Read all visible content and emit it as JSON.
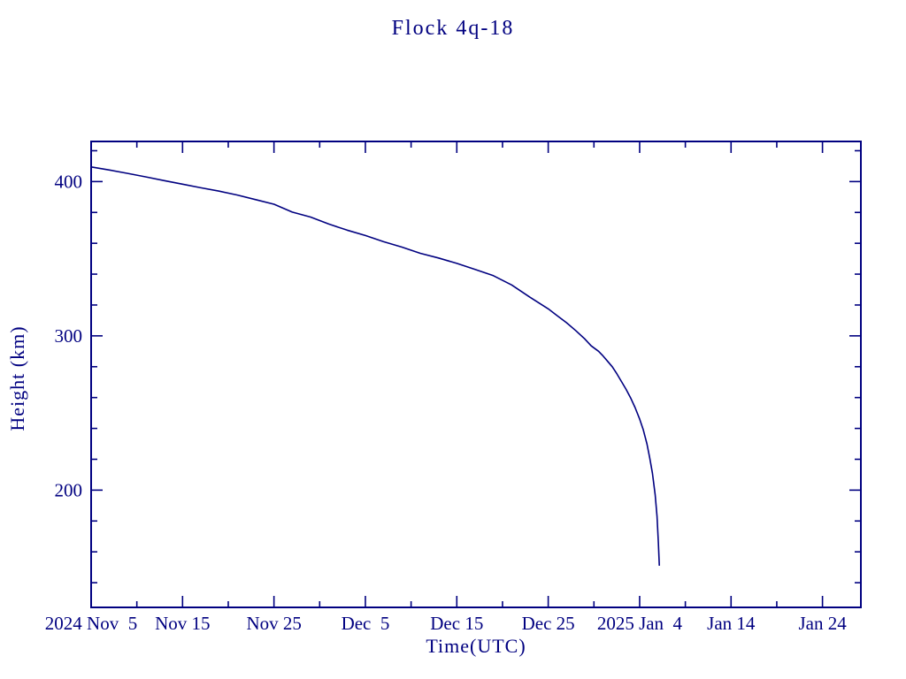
{
  "title": "Flock 4q-18",
  "colors": {
    "line": "#000080",
    "axis": "#000080",
    "text": "#000080",
    "background": "#ffffff"
  },
  "chart_data": {
    "type": "line",
    "title": "Flock 4q-18",
    "xlabel": "Time(UTC)",
    "ylabel": "Height (km)",
    "x_unit": "days since 2024 Nov 5 00:00 UTC",
    "xlim": [
      0,
      84.2
    ],
    "ylim": [
      124,
      426
    ],
    "grid": false,
    "legend_position": "none",
    "x_major_ticks": [
      {
        "day": 0,
        "label": "2024 Nov  5"
      },
      {
        "day": 10,
        "label": "Nov 15"
      },
      {
        "day": 20,
        "label": "Nov 25"
      },
      {
        "day": 30,
        "label": "Dec  5"
      },
      {
        "day": 40,
        "label": "Dec 15"
      },
      {
        "day": 50,
        "label": "Dec 25"
      },
      {
        "day": 60,
        "label": "2025 Jan  4"
      },
      {
        "day": 70,
        "label": "Jan 14"
      },
      {
        "day": 80,
        "label": "Jan 24"
      }
    ],
    "x_minor_ticks": [
      5,
      15,
      25,
      35,
      45,
      55,
      65,
      75
    ],
    "y_major_ticks": [
      {
        "value": 200,
        "label": "200"
      },
      {
        "value": 300,
        "label": "300"
      },
      {
        "value": 400,
        "label": "400"
      }
    ],
    "y_minor_ticks": [
      140,
      160,
      180,
      220,
      240,
      260,
      280,
      320,
      340,
      360,
      380,
      420
    ],
    "series": [
      {
        "name": "Flock 4q-18 height",
        "color": "#000080",
        "points": [
          [
            0,
            409.5
          ],
          [
            2,
            407.5
          ],
          [
            4,
            405.3
          ],
          [
            6,
            403.0
          ],
          [
            8,
            400.6
          ],
          [
            10,
            398.3
          ],
          [
            12,
            396.0
          ],
          [
            14,
            393.8
          ],
          [
            16,
            391.3
          ],
          [
            18,
            388.3
          ],
          [
            20,
            385.3
          ],
          [
            22,
            380.2
          ],
          [
            24,
            377.0
          ],
          [
            26,
            372.5
          ],
          [
            28,
            368.5
          ],
          [
            30,
            365.0
          ],
          [
            32,
            361.0
          ],
          [
            34,
            357.5
          ],
          [
            36,
            353.5
          ],
          [
            38,
            350.5
          ],
          [
            40,
            347.0
          ],
          [
            42,
            343.0
          ],
          [
            44,
            339.0
          ],
          [
            46,
            333.0
          ],
          [
            48,
            325.0
          ],
          [
            50,
            317.5
          ],
          [
            51,
            313.0
          ],
          [
            52,
            308.5
          ],
          [
            53,
            303.5
          ],
          [
            54,
            298.0
          ],
          [
            54.7,
            293.5
          ],
          [
            55.5,
            290.0
          ],
          [
            56,
            287.0
          ],
          [
            56.5,
            283.5
          ],
          [
            57,
            280.0
          ],
          [
            57.5,
            275.5
          ],
          [
            58,
            270.5
          ],
          [
            58.5,
            265.5
          ],
          [
            59,
            260.0
          ],
          [
            59.5,
            253.5
          ],
          [
            60,
            246.0
          ],
          [
            60.4,
            239.0
          ],
          [
            60.8,
            230.0
          ],
          [
            61.1,
            221.0
          ],
          [
            61.4,
            211.0
          ],
          [
            61.7,
            197.0
          ],
          [
            61.9,
            183.0
          ],
          [
            62.05,
            166.0
          ],
          [
            62.15,
            151.0
          ]
        ]
      }
    ]
  }
}
